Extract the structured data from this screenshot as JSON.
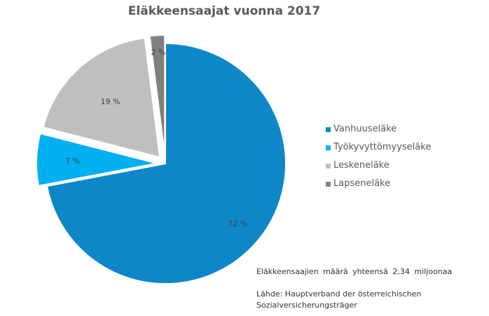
{
  "chart_data": {
    "type": "pie",
    "title": "Eläkkeensaajat vuonna 2017",
    "slices": [
      {
        "label": "Vanhuuseläke",
        "value": 72,
        "value_label": "72 %",
        "color": "#0E87C8"
      },
      {
        "label": "Työkyvyttömyyseläke",
        "value": 7,
        "value_label": "7 %",
        "color": "#00B0F0"
      },
      {
        "label": "Leskeneläke",
        "value": 19,
        "value_label": "19 %",
        "color": "#BFBFBF"
      },
      {
        "label": "Lapseneläke",
        "value": 2,
        "value_label": "2 %",
        "color": "#808080"
      }
    ],
    "legend_position": "right"
  },
  "notes": {
    "total": "Eläkkeensaajien määrä yhteensä 2,34 miljoonaa",
    "source_line1": "Lähde: Hauptverband der österreichischen",
    "source_line2": "Sozialversicherungsträger"
  }
}
